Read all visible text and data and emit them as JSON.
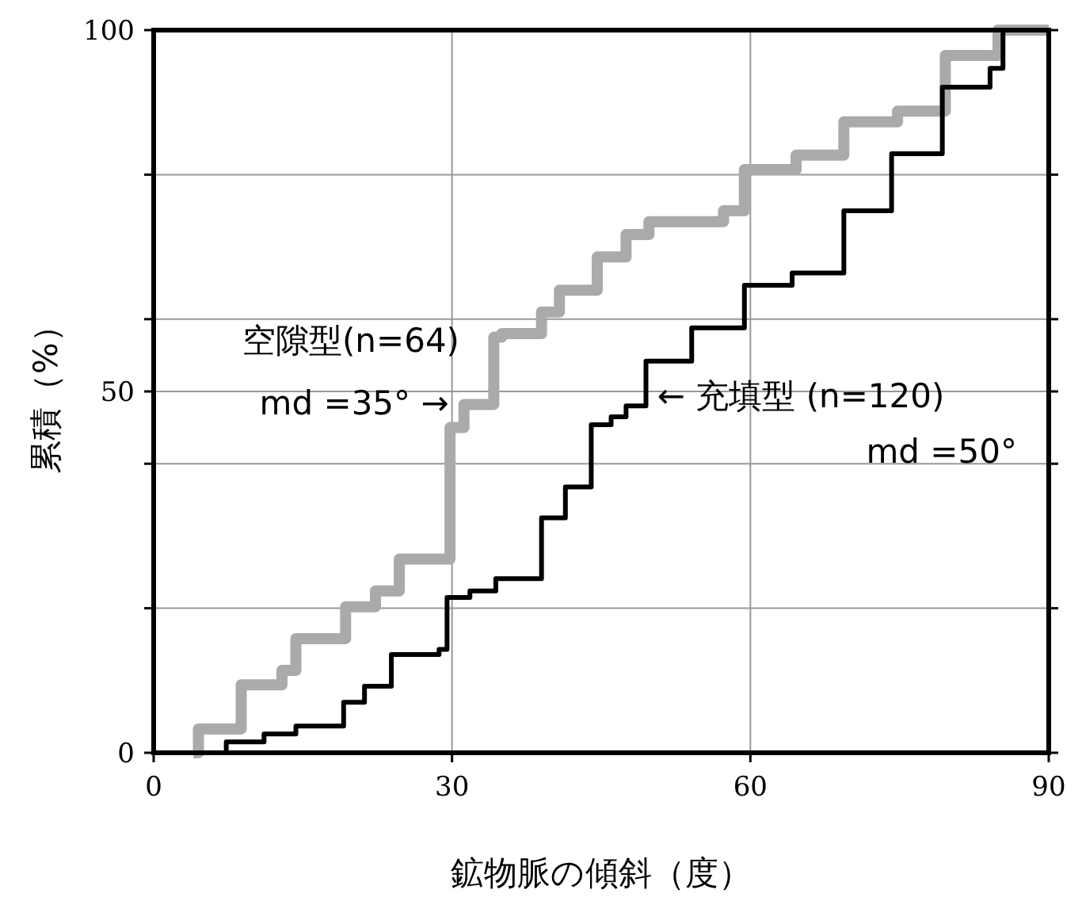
{
  "chart_data": {
    "type": "step",
    "xlabel": "鉱物脈の傾斜（度）",
    "ylabel": "累積（%）",
    "xlim": [
      0,
      90
    ],
    "ylim": [
      0,
      100
    ],
    "xticks": [
      0,
      30,
      60,
      90
    ],
    "yticks": [
      0,
      {
        "value": 20,
        "label": null
      },
      {
        "value": 40,
        "label": null
      },
      50,
      {
        "value": 60,
        "label": null
      },
      {
        "value": 80,
        "label": null
      },
      100
    ],
    "grid": true,
    "line_style": "solid",
    "marker": "none",
    "series": [
      {
        "color": "#aaaaaa",
        "x": [
          4,
          4.5,
          8.8,
          12.9,
          14.3,
          19.3,
          22.3,
          24.7,
          29.1,
          29.8,
          31.2,
          34.2,
          35,
          39,
          40.8,
          44.6,
          47.5,
          49.8,
          57.3,
          59.4,
          64.6,
          69.4,
          74.8,
          79.6,
          84.9,
          90
        ],
        "values": [
          0,
          3.3,
          9.4,
          11.4,
          15.8,
          20.2,
          22.4,
          26.8,
          26.8,
          45,
          48.2,
          57.5,
          58,
          61,
          64,
          68.6,
          71.7,
          73.5,
          75,
          80.7,
          82.7,
          87.3,
          88.8,
          96.5,
          100,
          100
        ]
      },
      {
        "color": "#000000",
        "x": [
          6,
          7.3,
          11.1,
          14.3,
          19.1,
          21.2,
          23.9,
          28.7,
          29.5,
          31.8,
          34.4,
          39,
          41.4,
          44,
          46,
          47.5,
          49.5,
          54.1,
          59.4,
          64.2,
          69.4,
          74.2,
          79.3,
          84.1,
          85.4,
          90
        ],
        "values": [
          0,
          1.5,
          2.6,
          3.7,
          7,
          9.2,
          13.6,
          14.3,
          21.5,
          22.4,
          24.1,
          32.5,
          36.8,
          45.4,
          46.5,
          48,
          54.2,
          58.8,
          64.7,
          66.4,
          75,
          82.9,
          92.1,
          94.7,
          100,
          100
        ]
      }
    ],
    "annotations": [
      "空隙型(n=64)",
      {
        "text": "md =35° →",
        "x": 30,
        "y": 49
      },
      {
        "text": "← 充填型 (n=120)",
        "x": 50,
        "y": 50
      },
      "md =50°"
    ]
  }
}
